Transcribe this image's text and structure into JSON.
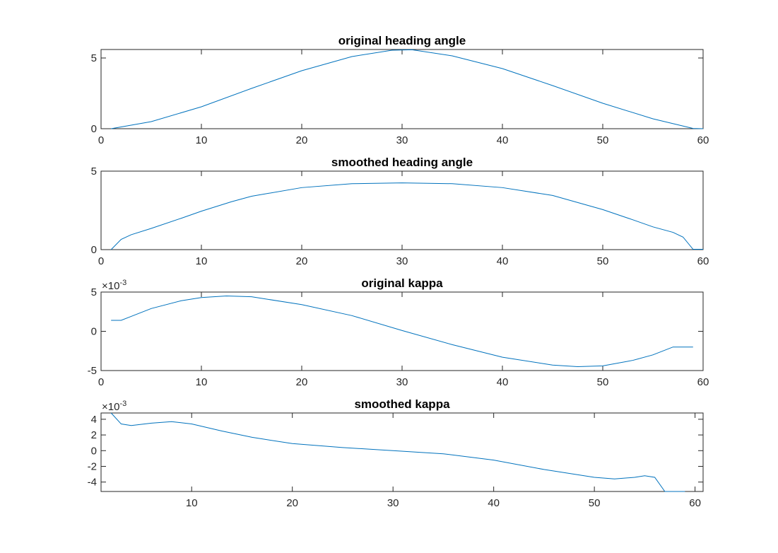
{
  "figure": {
    "background": "#ffffff"
  },
  "chart_data": [
    {
      "type": "line",
      "title": "original heading angle",
      "xlabel": "",
      "ylabel": "",
      "xlim": [
        0,
        60
      ],
      "ylim": [
        0,
        5.6
      ],
      "xticks": [
        0,
        10,
        20,
        30,
        40,
        50,
        60
      ],
      "xtick_labels": [
        "0",
        "10",
        "20",
        "30",
        "40",
        "50",
        "60"
      ],
      "yticks": [
        0,
        5
      ],
      "ytick_labels": [
        "0",
        "5"
      ],
      "exponent": "",
      "grid": false,
      "legend": "none",
      "series": [
        {
          "color": "#0072bd",
          "x": [
            1,
            5,
            10,
            15,
            20,
            25,
            29,
            31,
            35,
            40,
            45,
            50,
            55,
            59,
            60
          ],
          "y": [
            0,
            0.5,
            1.55,
            2.85,
            4.1,
            5.1,
            5.55,
            5.58,
            5.15,
            4.25,
            3.05,
            1.8,
            0.7,
            0.02,
            0
          ]
        }
      ]
    },
    {
      "type": "line",
      "title": "smoothed heading angle",
      "xlabel": "",
      "ylabel": "",
      "xlim": [
        0,
        60
      ],
      "ylim": [
        0,
        5
      ],
      "xticks": [
        0,
        10,
        20,
        30,
        40,
        50,
        60
      ],
      "xtick_labels": [
        "0",
        "10",
        "20",
        "30",
        "40",
        "50",
        "60"
      ],
      "yticks": [
        0,
        5
      ],
      "ytick_labels": [
        "0",
        "5"
      ],
      "exponent": "",
      "grid": false,
      "legend": "none",
      "series": [
        {
          "color": "#0072bd",
          "x": [
            1,
            2,
            3,
            5,
            8,
            10,
            13,
            15,
            20,
            25,
            30,
            35,
            40,
            45,
            50,
            53,
            55,
            57,
            58,
            59,
            60
          ],
          "y": [
            0,
            0.65,
            0.95,
            1.35,
            2.0,
            2.45,
            3.05,
            3.4,
            3.95,
            4.2,
            4.25,
            4.2,
            3.95,
            3.45,
            2.55,
            1.9,
            1.45,
            1.1,
            0.8,
            0.02,
            0.02
          ]
        }
      ]
    },
    {
      "type": "line",
      "title": "original kappa",
      "xlabel": "",
      "ylabel": "",
      "xlim": [
        0,
        60
      ],
      "ylim": [
        -0.005,
        0.005
      ],
      "xticks": [
        0,
        10,
        20,
        30,
        40,
        50,
        60
      ],
      "xtick_labels": [
        "0",
        "10",
        "20",
        "30",
        "40",
        "50",
        "60"
      ],
      "yticks": [
        -0.005,
        0,
        0.005
      ],
      "ytick_labels": [
        "-5",
        "0",
        "5"
      ],
      "exponent": "×10",
      "exponent_power": "-3",
      "grid": false,
      "legend": "none",
      "series": [
        {
          "color": "#0072bd",
          "x": [
            1,
            2,
            3,
            5,
            8,
            10,
            12.5,
            15,
            20,
            25,
            30,
            35,
            40,
            45,
            47.5,
            50,
            53,
            55,
            57,
            58,
            59
          ],
          "y": [
            0.0014,
            0.0014,
            0.0019,
            0.0029,
            0.0039,
            0.0043,
            0.0045,
            0.0044,
            0.0034,
            0.002,
            0.0001,
            -0.0017,
            -0.0033,
            -0.0043,
            -0.0045,
            -0.0044,
            -0.0037,
            -0.003,
            -0.002,
            -0.002,
            -0.002
          ]
        }
      ]
    },
    {
      "type": "line",
      "title": "smoothed kappa",
      "xlabel": "",
      "ylabel": "",
      "xlim": [
        1,
        60.8
      ],
      "ylim": [
        -0.0052,
        0.0048
      ],
      "xticks": [
        10,
        20,
        30,
        40,
        50,
        60
      ],
      "xtick_labels": [
        "10",
        "20",
        "30",
        "40",
        "50",
        "60"
      ],
      "yticks": [
        -0.004,
        -0.002,
        0,
        0.002,
        0.004
      ],
      "ytick_labels": [
        "-4",
        "-2",
        "0",
        "2",
        "4"
      ],
      "exponent": "×10",
      "exponent_power": "-3",
      "grid": false,
      "legend": "none",
      "series": [
        {
          "color": "#0072bd",
          "x": [
            2,
            3,
            4,
            6,
            8,
            10,
            13,
            16,
            20,
            25,
            30,
            35,
            40,
            45,
            50,
            52,
            54,
            55,
            56,
            57,
            58,
            59
          ],
          "y": [
            0.0048,
            0.0034,
            0.0032,
            0.0035,
            0.0037,
            0.0034,
            0.0025,
            0.0017,
            0.0009,
            0.0004,
            0.0,
            -0.0004,
            -0.0012,
            -0.0024,
            -0.0034,
            -0.0036,
            -0.0034,
            -0.0032,
            -0.0034,
            -0.0052,
            -0.0052,
            -0.0052
          ]
        }
      ]
    }
  ]
}
